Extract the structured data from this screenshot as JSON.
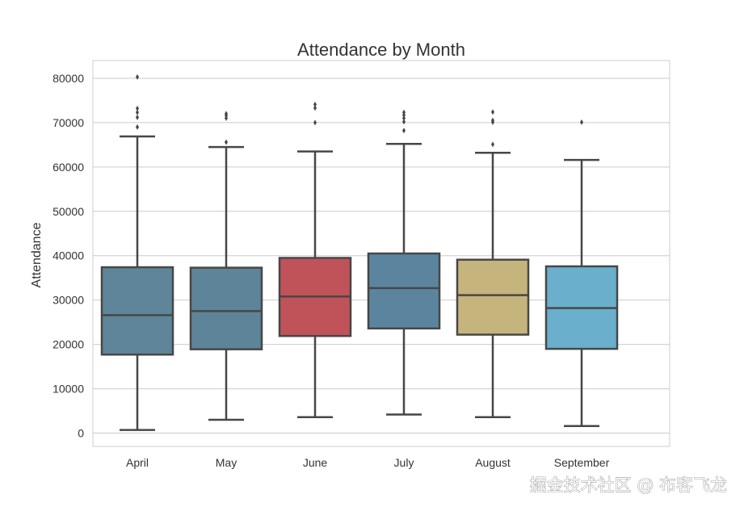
{
  "chart_data": {
    "type": "box",
    "title": "Attendance by Month",
    "xlabel": "",
    "ylabel": "Attendance",
    "ylim": [
      -3000,
      84000
    ],
    "yticks": [
      0,
      10000,
      20000,
      30000,
      40000,
      50000,
      60000,
      70000,
      80000
    ],
    "grid": "horizontal",
    "categories": [
      "April",
      "May",
      "June",
      "July",
      "August",
      "September"
    ],
    "boxes": [
      {
        "name": "April",
        "whisker_low": 700,
        "q1": 17700,
        "median": 26600,
        "q3": 37400,
        "whisker_high": 66900,
        "outliers": [
          69000,
          71200,
          72300,
          73200,
          80300
        ],
        "color": "#5e8599"
      },
      {
        "name": "May",
        "whisker_low": 3000,
        "q1": 18900,
        "median": 27500,
        "q3": 37300,
        "whisker_high": 64500,
        "outliers": [
          65600,
          71000,
          71600,
          72000
        ],
        "color": "#5d8499"
      },
      {
        "name": "June",
        "whisker_low": 3600,
        "q1": 21900,
        "median": 30800,
        "q3": 39500,
        "whisker_high": 63500,
        "outliers": [
          70000,
          73300,
          74100
        ],
        "color": "#c0525a"
      },
      {
        "name": "July",
        "whisker_low": 4200,
        "q1": 23600,
        "median": 32700,
        "q3": 40500,
        "whisker_high": 65200,
        "outliers": [
          68200,
          70200,
          71000,
          71700,
          72300
        ],
        "color": "#5b859f"
      },
      {
        "name": "August",
        "whisker_low": 3600,
        "q1": 22200,
        "median": 31100,
        "q3": 39100,
        "whisker_high": 63200,
        "outliers": [
          65100,
          70100,
          70500,
          72400
        ],
        "color": "#c6b47d"
      },
      {
        "name": "September",
        "whisker_low": 1600,
        "q1": 19000,
        "median": 28200,
        "q3": 37600,
        "whisker_high": 61600,
        "outliers": [
          70100
        ],
        "color": "#6aafcb"
      }
    ]
  },
  "watermark": {
    "text": "掘金技术社区 @ 布客飞龙"
  }
}
